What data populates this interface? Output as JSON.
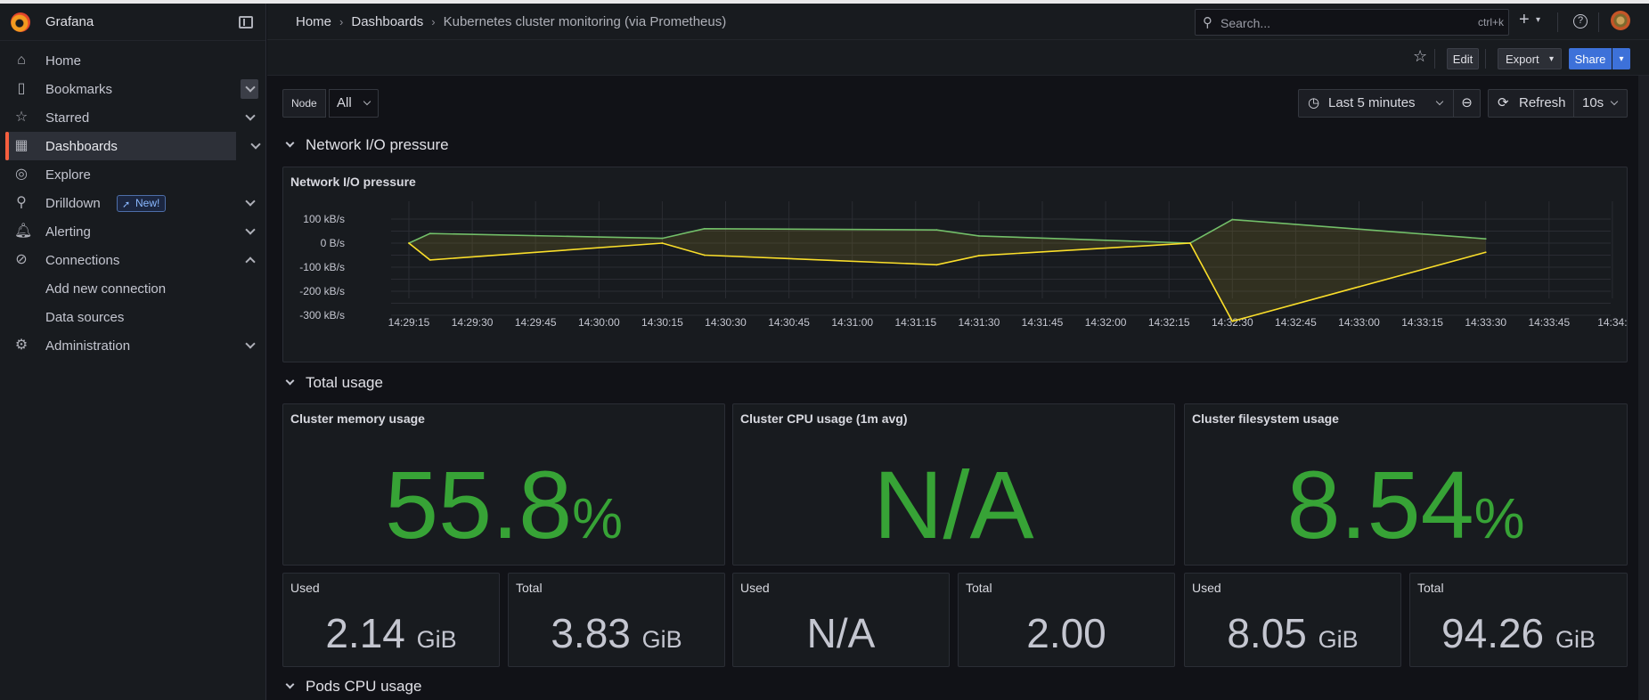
{
  "app": {
    "name": "Grafana"
  },
  "sidebar": {
    "items": [
      {
        "label": "Home",
        "icon": "home-icon"
      },
      {
        "label": "Bookmarks",
        "icon": "bookmark-icon"
      },
      {
        "label": "Starred",
        "icon": "star-icon"
      },
      {
        "label": "Dashboards",
        "icon": "dashboards-icon"
      },
      {
        "label": "Explore",
        "icon": "compass-icon"
      },
      {
        "label": "Drilldown",
        "icon": "drilldown-icon",
        "badge": "New!"
      },
      {
        "label": "Alerting",
        "icon": "bell-icon"
      },
      {
        "label": "Connections",
        "icon": "connections-icon"
      },
      {
        "label": "Add new connection"
      },
      {
        "label": "Data sources"
      },
      {
        "label": "Administration",
        "icon": "gear-icon"
      }
    ]
  },
  "header": {
    "breadcrumbs": [
      "Home",
      "Dashboards",
      "Kubernetes cluster monitoring (via Prometheus)"
    ],
    "search_placeholder": "Search...",
    "search_shortcut": "ctrl+k"
  },
  "toolbar": {
    "edit": "Edit",
    "export": "Export",
    "share": "Share"
  },
  "filters": {
    "node_label": "Node",
    "node_value": "All"
  },
  "time": {
    "range": "Last 5 minutes",
    "refresh": "Refresh",
    "interval": "10s"
  },
  "rows": {
    "network": "Network I/O pressure",
    "total": "Total usage",
    "pods": "Pods CPU usage"
  },
  "chart_panel_title": "Network I/O pressure",
  "chart_data": {
    "type": "line",
    "title": "Network I/O pressure",
    "x": [
      "14:29:15",
      "14:29:20",
      "14:30:15",
      "14:30:25",
      "14:31:20",
      "14:31:30",
      "14:32:20",
      "14:32:30",
      "14:33:30"
    ],
    "x_ticks": [
      "14:29:15",
      "14:29:30",
      "14:29:45",
      "14:30:00",
      "14:30:15",
      "14:30:30",
      "14:30:45",
      "14:31:00",
      "14:31:15",
      "14:31:30",
      "14:31:45",
      "14:32:00",
      "14:32:15",
      "14:32:30",
      "14:32:45",
      "14:33:00",
      "14:33:15",
      "14:33:30",
      "14:33:45",
      "14:34:"
    ],
    "y_ticks": [
      "100 kB/s",
      "0 B/s",
      "-100 kB/s",
      "-200 kB/s",
      "-300 kB/s"
    ],
    "ylim": [
      -300,
      100
    ],
    "series": [
      {
        "color": "#73bf69",
        "values": [
          0,
          40,
          20,
          60,
          55,
          30,
          0,
          98,
          18
        ]
      },
      {
        "color": "#fade2a",
        "values": [
          0,
          -70,
          0,
          -50,
          -90,
          -52,
          0,
          -325,
          -38
        ]
      }
    ]
  },
  "stats": {
    "memory": {
      "title": "Cluster memory usage",
      "value": "55.8",
      "unit": "%"
    },
    "cpu": {
      "title": "Cluster CPU usage (1m avg)",
      "value": "N/A",
      "unit": ""
    },
    "fs": {
      "title": "Cluster filesystem usage",
      "value": "8.54",
      "unit": "%"
    }
  },
  "small_stats": [
    {
      "title": "Used",
      "value": "2.14",
      "unit": "GiB"
    },
    {
      "title": "Total",
      "value": "3.83",
      "unit": "GiB"
    },
    {
      "title": "Used",
      "value": "N/A",
      "unit": ""
    },
    {
      "title": "Total",
      "value": "2.00",
      "unit": ""
    },
    {
      "title": "Used",
      "value": "8.05",
      "unit": "GiB"
    },
    {
      "title": "Total",
      "value": "94.26",
      "unit": "GiB"
    }
  ],
  "colors": {
    "accent": "#f55f3e",
    "stat_green": "#37a336",
    "primary_button": "#3d71d9"
  }
}
